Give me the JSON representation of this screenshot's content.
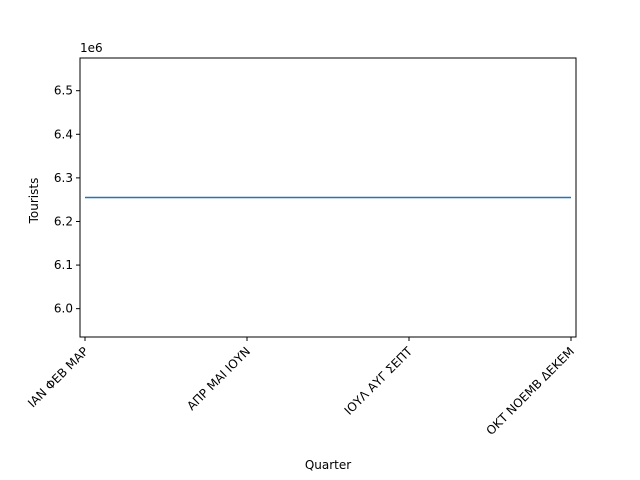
{
  "chart_data": {
    "type": "line",
    "title": "",
    "xlabel": "Quarter",
    "ylabel": "Tourists",
    "y_offset_label": "1e6",
    "categories": [
      "ΙΑΝ ΦΕΒ ΜΑΡ",
      "ΑΠΡ ΜΑΙ ΙΟΥΝ",
      "ΙΟΥΛ ΑΥΓ ΣΕΠΤ",
      "ΟΚΤ ΝΟΕΜΒ ΔΕΚΕΜ"
    ],
    "series": [
      {
        "values": [
          6255000,
          6255000,
          6255000,
          6255000
        ],
        "color": "#1f77b4"
      }
    ],
    "ylim": [
      5935000,
      6575000
    ],
    "yticks": [
      6000000,
      6100000,
      6200000,
      6300000,
      6400000,
      6500000
    ],
    "ytick_labels": [
      "6.0",
      "6.1",
      "6.2",
      "6.3",
      "6.4",
      "6.5"
    ],
    "grid": false,
    "legend": "none"
  }
}
